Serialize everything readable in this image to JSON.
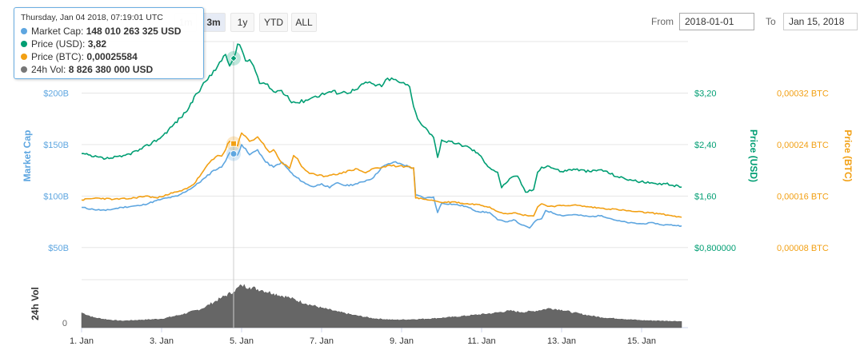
{
  "range_selector": {
    "buttons": [
      {
        "label": "1m"
      },
      {
        "label": "3m"
      },
      {
        "label": "1y"
      },
      {
        "label": "YTD"
      },
      {
        "label": "ALL"
      }
    ],
    "from_label": "From",
    "from_value": "2018-01-01",
    "to_label": "To",
    "to_value": "Jan 15, 2018"
  },
  "tooltip": {
    "date": "Thursday, Jan 04 2018, 07:19:01 UTC",
    "rows": [
      {
        "label": "Market Cap:",
        "value": "148 010 263 325 USD",
        "color": "#5ea6e0"
      },
      {
        "label": "Price (USD):",
        "value": "3,82",
        "color": "#009e73"
      },
      {
        "label": "Price (BTC):",
        "value": "0,00025584",
        "color": "#f2a014"
      },
      {
        "label": "24h Vol:",
        "value": "8 826 380 000 USD",
        "color": "#777777"
      }
    ]
  },
  "colors": {
    "market_cap": "#5ea6e0",
    "price_usd": "#009e73",
    "price_btc": "#f2a014",
    "volume": "#666666"
  },
  "chart_data": {
    "type": "line",
    "title": "",
    "x_range": [
      "2018-01-01",
      "2018-01-15"
    ],
    "x_tick_labels": [
      "1. Jan",
      "3. Jan",
      "5. Jan",
      "7. Jan",
      "9. Jan",
      "11. Jan",
      "13. Jan",
      "15. Jan"
    ],
    "x_tick_days": [
      0,
      2,
      4,
      6,
      8,
      10,
      12,
      14
    ],
    "y_axes": {
      "market_cap": {
        "title": "Market Cap",
        "range": [
          25,
          250
        ],
        "ticks": [
          50,
          100,
          150,
          200
        ],
        "tick_labels": [
          "$50B",
          "$100B",
          "$150B",
          "$200B"
        ]
      },
      "price_usd": {
        "title": "Price (USD)",
        "range": [
          0.4,
          4.0
        ],
        "ticks": [
          0.8,
          1.6,
          2.4,
          3.2
        ],
        "tick_labels": [
          "$0,800000",
          "$1,60",
          "$2,40",
          "$3,20"
        ]
      },
      "price_btc": {
        "title": "Price (BTC)",
        "range": [
          4e-05,
          0.0004
        ],
        "ticks": [
          8e-05,
          0.00016,
          0.00024,
          0.00032
        ],
        "tick_labels": [
          "0,00008 BTC",
          "0,00016 BTC",
          "0,00024 BTC",
          "0,00032 BTC"
        ]
      },
      "volume": {
        "title": "24h Vol",
        "range": [
          0,
          10
        ],
        "ticks": [
          0
        ],
        "tick_labels": [
          "0"
        ]
      }
    },
    "series": [
      {
        "name": "Market Cap",
        "unit": "B USD",
        "axis": "market_cap",
        "points": [
          [
            0,
            89
          ],
          [
            0.3,
            87
          ],
          [
            0.6,
            86
          ],
          [
            1.0,
            89
          ],
          [
            1.5,
            91
          ],
          [
            2.0,
            97
          ],
          [
            2.4,
            100
          ],
          [
            2.8,
            109
          ],
          [
            3.1,
            118
          ],
          [
            3.3,
            125
          ],
          [
            3.5,
            128
          ],
          [
            3.7,
            142
          ],
          [
            3.9,
            140
          ],
          [
            4.0,
            150
          ],
          [
            4.2,
            140
          ],
          [
            4.4,
            145
          ],
          [
            4.6,
            133
          ],
          [
            4.8,
            128
          ],
          [
            5.0,
            133
          ],
          [
            5.3,
            120
          ],
          [
            5.6,
            112
          ],
          [
            5.8,
            109
          ],
          [
            6.0,
            112
          ],
          [
            6.2,
            108
          ],
          [
            6.4,
            113
          ],
          [
            6.6,
            110
          ],
          [
            6.9,
            112
          ],
          [
            7.3,
            118
          ],
          [
            7.5,
            128
          ],
          [
            7.8,
            133
          ],
          [
            8.0,
            131
          ],
          [
            8.3,
            127
          ],
          [
            8.35,
            101
          ],
          [
            8.6,
            98
          ],
          [
            8.8,
            99
          ],
          [
            8.9,
            84
          ],
          [
            9.0,
            93
          ],
          [
            9.3,
            92
          ],
          [
            9.6,
            90
          ],
          [
            9.9,
            85
          ],
          [
            10.2,
            84
          ],
          [
            10.4,
            77
          ],
          [
            10.6,
            75
          ],
          [
            10.8,
            77
          ],
          [
            11.0,
            72
          ],
          [
            11.2,
            69
          ],
          [
            11.35,
            76
          ],
          [
            11.5,
            78
          ],
          [
            11.6,
            86
          ],
          [
            12.0,
            81
          ],
          [
            12.3,
            82
          ],
          [
            12.7,
            80
          ],
          [
            13.0,
            81
          ],
          [
            13.4,
            76
          ],
          [
            13.7,
            74
          ],
          [
            14.0,
            73
          ],
          [
            14.3,
            74
          ],
          [
            14.5,
            72
          ],
          [
            14.7,
            72
          ],
          [
            15.0,
            71
          ]
        ]
      },
      {
        "name": "Price (USD)",
        "unit": "USD",
        "axis": "price_usd",
        "points": [
          [
            0,
            2.26
          ],
          [
            0.3,
            2.21
          ],
          [
            0.6,
            2.18
          ],
          [
            1.0,
            2.21
          ],
          [
            1.5,
            2.33
          ],
          [
            2.0,
            2.52
          ],
          [
            2.3,
            2.71
          ],
          [
            2.6,
            2.9
          ],
          [
            2.9,
            3.2
          ],
          [
            3.1,
            3.38
          ],
          [
            3.3,
            3.55
          ],
          [
            3.5,
            3.7
          ],
          [
            3.6,
            3.8
          ],
          [
            3.7,
            3.62
          ],
          [
            3.8,
            3.74
          ],
          [
            3.9,
            3.96
          ],
          [
            4.0,
            3.88
          ],
          [
            4.1,
            3.7
          ],
          [
            4.2,
            3.72
          ],
          [
            4.3,
            3.62
          ],
          [
            4.45,
            3.35
          ],
          [
            4.6,
            3.34
          ],
          [
            4.8,
            3.22
          ],
          [
            5.0,
            3.24
          ],
          [
            5.2,
            3.09
          ],
          [
            5.4,
            3.05
          ],
          [
            5.6,
            3.09
          ],
          [
            5.8,
            3.14
          ],
          [
            6.2,
            3.22
          ],
          [
            6.6,
            3.21
          ],
          [
            6.9,
            3.26
          ],
          [
            7.1,
            3.37
          ],
          [
            7.3,
            3.34
          ],
          [
            7.5,
            3.3
          ],
          [
            7.65,
            3.43
          ],
          [
            7.8,
            3.41
          ],
          [
            8.0,
            3.36
          ],
          [
            8.2,
            3.3
          ],
          [
            8.3,
            2.99
          ],
          [
            8.4,
            2.8
          ],
          [
            8.6,
            2.66
          ],
          [
            8.8,
            2.51
          ],
          [
            8.9,
            2.2
          ],
          [
            9.0,
            2.47
          ],
          [
            9.3,
            2.42
          ],
          [
            9.6,
            2.38
          ],
          [
            9.9,
            2.27
          ],
          [
            10.2,
            2.04
          ],
          [
            10.4,
            1.97
          ],
          [
            10.5,
            1.73
          ],
          [
            10.7,
            1.87
          ],
          [
            10.9,
            1.91
          ],
          [
            11.1,
            1.66
          ],
          [
            11.3,
            1.7
          ],
          [
            11.4,
            1.97
          ],
          [
            11.5,
            2.05
          ],
          [
            11.65,
            2.07
          ],
          [
            12.0,
            1.98
          ],
          [
            12.3,
            2.02
          ],
          [
            12.7,
            1.98
          ],
          [
            13.0,
            2.01
          ],
          [
            13.4,
            1.9
          ],
          [
            13.8,
            1.84
          ],
          [
            14.2,
            1.8
          ],
          [
            14.4,
            1.78
          ],
          [
            14.6,
            1.79
          ],
          [
            15.0,
            1.74
          ]
        ]
      },
      {
        "name": "Price (BTC)",
        "unit": "BTC",
        "axis": "price_btc",
        "points": [
          [
            0,
            0.000154
          ],
          [
            0.4,
            0.000157
          ],
          [
            0.8,
            0.000155
          ],
          [
            1.2,
            0.000156
          ],
          [
            1.6,
            0.00016
          ],
          [
            1.9,
            0.000157
          ],
          [
            2.1,
            0.000162
          ],
          [
            2.5,
            0.000168
          ],
          [
            2.8,
            0.000178
          ],
          [
            3.0,
            0.000195
          ],
          [
            3.2,
            0.000212
          ],
          [
            3.4,
            0.000223
          ],
          [
            3.5,
            0.000222
          ],
          [
            3.7,
            0.000245
          ],
          [
            3.9,
            0.000238
          ],
          [
            4.0,
            0.000258
          ],
          [
            4.2,
            0.000245
          ],
          [
            4.4,
            0.000252
          ],
          [
            4.5,
            0.000244
          ],
          [
            4.7,
            0.000228
          ],
          [
            4.8,
            0.000232
          ],
          [
            5.0,
            0.000212
          ],
          [
            5.2,
            0.000203
          ],
          [
            5.3,
            0.000223
          ],
          [
            5.4,
            0.000218
          ],
          [
            5.5,
            0.000206
          ],
          [
            5.7,
            0.000195
          ],
          [
            5.9,
            0.000192
          ],
          [
            6.1,
            0.000191
          ],
          [
            6.3,
            0.000194
          ],
          [
            6.5,
            0.000195
          ],
          [
            6.7,
            0.0002
          ],
          [
            6.9,
            0.000202
          ],
          [
            7.1,
            0.000196
          ],
          [
            7.3,
            0.000203
          ],
          [
            7.5,
            0.000204
          ],
          [
            7.7,
            0.000208
          ],
          [
            7.9,
            0.000206
          ],
          [
            8.1,
            0.000206
          ],
          [
            8.3,
            0.000204
          ],
          [
            8.35,
            0.000157
          ],
          [
            8.6,
            0.000155
          ],
          [
            8.8,
            0.000153
          ],
          [
            9.0,
            0.00015
          ],
          [
            9.3,
            0.000151
          ],
          [
            9.6,
            0.000148
          ],
          [
            9.9,
            0.000147
          ],
          [
            10.2,
            0.000143
          ],
          [
            10.4,
            0.000136
          ],
          [
            10.6,
            0.000133
          ],
          [
            10.8,
            0.000134
          ],
          [
            11.0,
            0.000131
          ],
          [
            11.3,
            0.000129
          ],
          [
            11.4,
            0.000143
          ],
          [
            11.5,
            0.000148
          ],
          [
            11.7,
            0.000144
          ],
          [
            12.0,
            0.000145
          ],
          [
            12.3,
            0.000146
          ],
          [
            12.7,
            0.000143
          ],
          [
            13.0,
            0.000141
          ],
          [
            13.4,
            0.000139
          ],
          [
            13.8,
            0.000136
          ],
          [
            14.2,
            0.000134
          ],
          [
            14.5,
            0.000132
          ],
          [
            14.7,
            0.00013
          ],
          [
            15.0,
            0.000127
          ]
        ]
      },
      {
        "name": "24h Vol",
        "unit": "B USD",
        "axis": "volume",
        "points": [
          [
            0,
            3.1
          ],
          [
            0.3,
            2.1
          ],
          [
            0.7,
            1.6
          ],
          [
            1.0,
            1.4
          ],
          [
            1.5,
            1.6
          ],
          [
            2.0,
            1.8
          ],
          [
            2.5,
            2.7
          ],
          [
            3.0,
            3.9
          ],
          [
            3.5,
            6.2
          ],
          [
            3.8,
            7.5
          ],
          [
            4.0,
            8.8
          ],
          [
            4.2,
            8.4
          ],
          [
            4.5,
            7.8
          ],
          [
            4.8,
            7.1
          ],
          [
            5.2,
            6.2
          ],
          [
            5.6,
            5.0
          ],
          [
            6.0,
            4.1
          ],
          [
            6.4,
            3.3
          ],
          [
            6.8,
            2.6
          ],
          [
            7.3,
            1.9
          ],
          [
            7.8,
            1.6
          ],
          [
            8.3,
            1.7
          ],
          [
            8.8,
            1.9
          ],
          [
            9.3,
            2.2
          ],
          [
            9.8,
            2.6
          ],
          [
            10.3,
            3.0
          ],
          [
            10.7,
            3.5
          ],
          [
            11.0,
            3.2
          ],
          [
            11.3,
            3.4
          ],
          [
            11.7,
            4.0
          ],
          [
            12.0,
            3.7
          ],
          [
            12.3,
            3.1
          ],
          [
            12.7,
            2.5
          ],
          [
            13.0,
            2.1
          ],
          [
            13.5,
            1.8
          ],
          [
            14.0,
            1.5
          ],
          [
            14.5,
            1.4
          ],
          [
            15.0,
            1.3
          ]
        ]
      }
    ],
    "highlight_day": 3.8
  }
}
